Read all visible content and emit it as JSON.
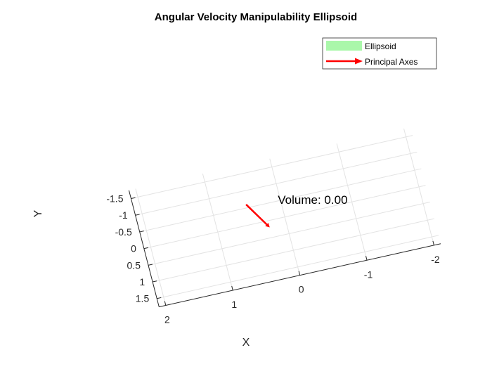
{
  "chart_data": {
    "type": "3d-surface",
    "title": "Angular Velocity Manipulability Ellipsoid",
    "xlabel": "X",
    "ylabel": "Y",
    "x_ticks": [
      {
        "value": 2,
        "label": "2"
      },
      {
        "value": 1,
        "label": "1"
      },
      {
        "value": 0,
        "label": "0"
      },
      {
        "value": -1,
        "label": "-1"
      },
      {
        "value": -2,
        "label": "-2"
      }
    ],
    "y_ticks": [
      {
        "value": -1.5,
        "label": "-1.5"
      },
      {
        "value": -1,
        "label": "-1"
      },
      {
        "value": -0.5,
        "label": "-0.5"
      },
      {
        "value": 0,
        "label": "0"
      },
      {
        "value": 0.5,
        "label": "0.5"
      },
      {
        "value": 1,
        "label": "1"
      },
      {
        "value": 1.5,
        "label": "1.5"
      }
    ],
    "xlim": [
      -2.1,
      2.1
    ],
    "ylim": [
      -1.75,
      1.75
    ],
    "grid": true,
    "legend": {
      "position": "top-right",
      "entries": [
        {
          "label": "Ellipsoid",
          "color": "#aaf7aa",
          "kind": "patch"
        },
        {
          "label": "Principal Axes",
          "color": "#ff0000",
          "kind": "arrow"
        }
      ]
    },
    "principal_axes": [
      {
        "start": [
          0.5,
          -0.6
        ],
        "end": [
          0.25,
          0.2
        ],
        "color": "#ff0000"
      }
    ],
    "annotation": {
      "text": "Volume: 0.00",
      "position": [
        0.05,
        -0.42
      ]
    }
  }
}
